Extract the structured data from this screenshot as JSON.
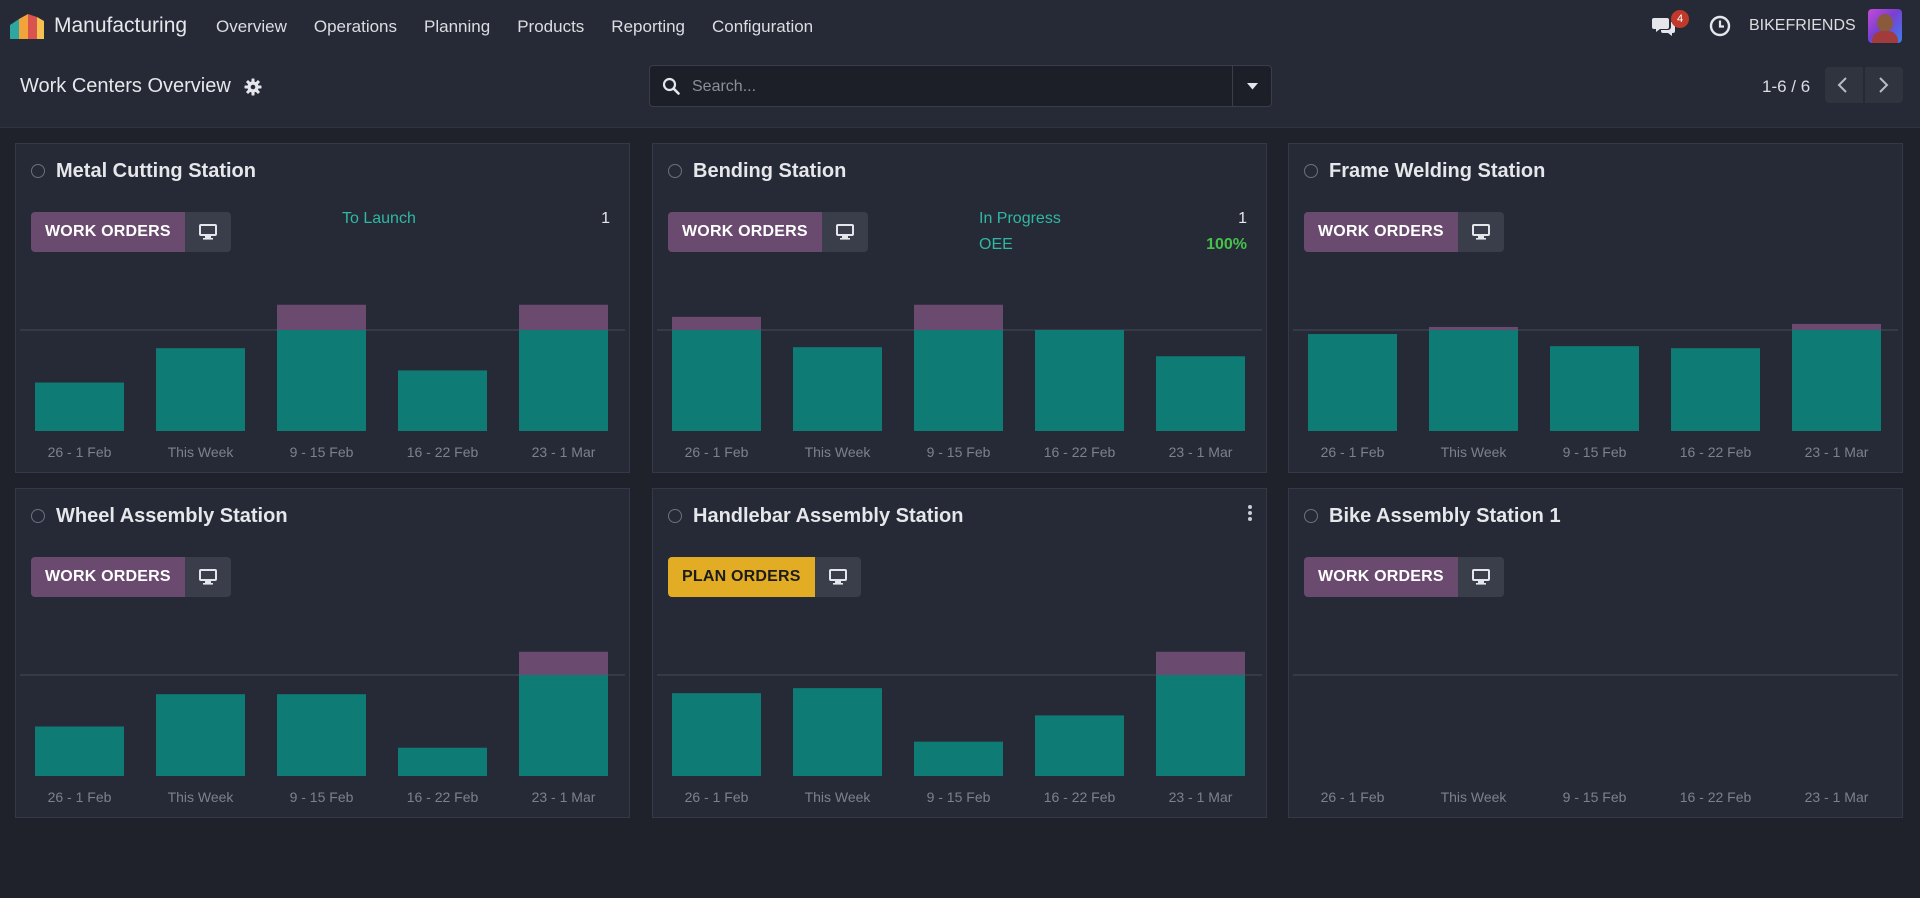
{
  "navbar": {
    "app_name": "Manufacturing",
    "menu": [
      "Overview",
      "Operations",
      "Planning",
      "Products",
      "Reporting",
      "Configuration"
    ],
    "message_count": "4",
    "company": "BIKEFRIENDS"
  },
  "control": {
    "title": "Work Centers Overview",
    "search_placeholder": "Search...",
    "pager": "1-6 / 6"
  },
  "colors": {
    "bar": "#0f7b75",
    "overload": "#6a4b6f",
    "work_orders_btn": "#6a4b6f",
    "plan_orders_btn": "#e2ad25"
  },
  "week_labels": [
    "26 - 1 Feb",
    "This Week",
    "9 - 15 Feb",
    "16 - 22 Feb",
    "23 - 1 Mar"
  ],
  "work_centers": [
    {
      "name": "Metal Cutting Station",
      "button": "WORK ORDERS",
      "stats": [
        {
          "label": "To Launch",
          "value": "1"
        }
      ],
      "load": [
        0.48,
        0.82,
        1.25,
        0.6,
        1.25
      ]
    },
    {
      "name": "Bending Station",
      "button": "WORK ORDERS",
      "stats": [
        {
          "label": "In Progress",
          "value": "1"
        },
        {
          "label": "OEE",
          "value": "100%"
        }
      ],
      "load": [
        1.13,
        0.83,
        1.25,
        1.0,
        0.74
      ]
    },
    {
      "name": "Frame Welding Station",
      "button": "WORK ORDERS",
      "stats": [],
      "load": [
        0.96,
        1.03,
        0.84,
        0.82,
        1.06
      ]
    },
    {
      "name": "Wheel Assembly Station",
      "button": "WORK ORDERS",
      "stats": [],
      "load": [
        0.49,
        0.81,
        0.81,
        0.28,
        1.23
      ]
    },
    {
      "name": "Handlebar Assembly Station",
      "button": "PLAN ORDERS",
      "stats": [],
      "load": [
        0.82,
        0.87,
        0.34,
        0.6,
        1.23
      ]
    },
    {
      "name": "Bike Assembly Station 1",
      "button": "WORK ORDERS",
      "stats": [],
      "load": [
        0,
        0,
        0,
        0,
        0
      ]
    }
  ]
}
